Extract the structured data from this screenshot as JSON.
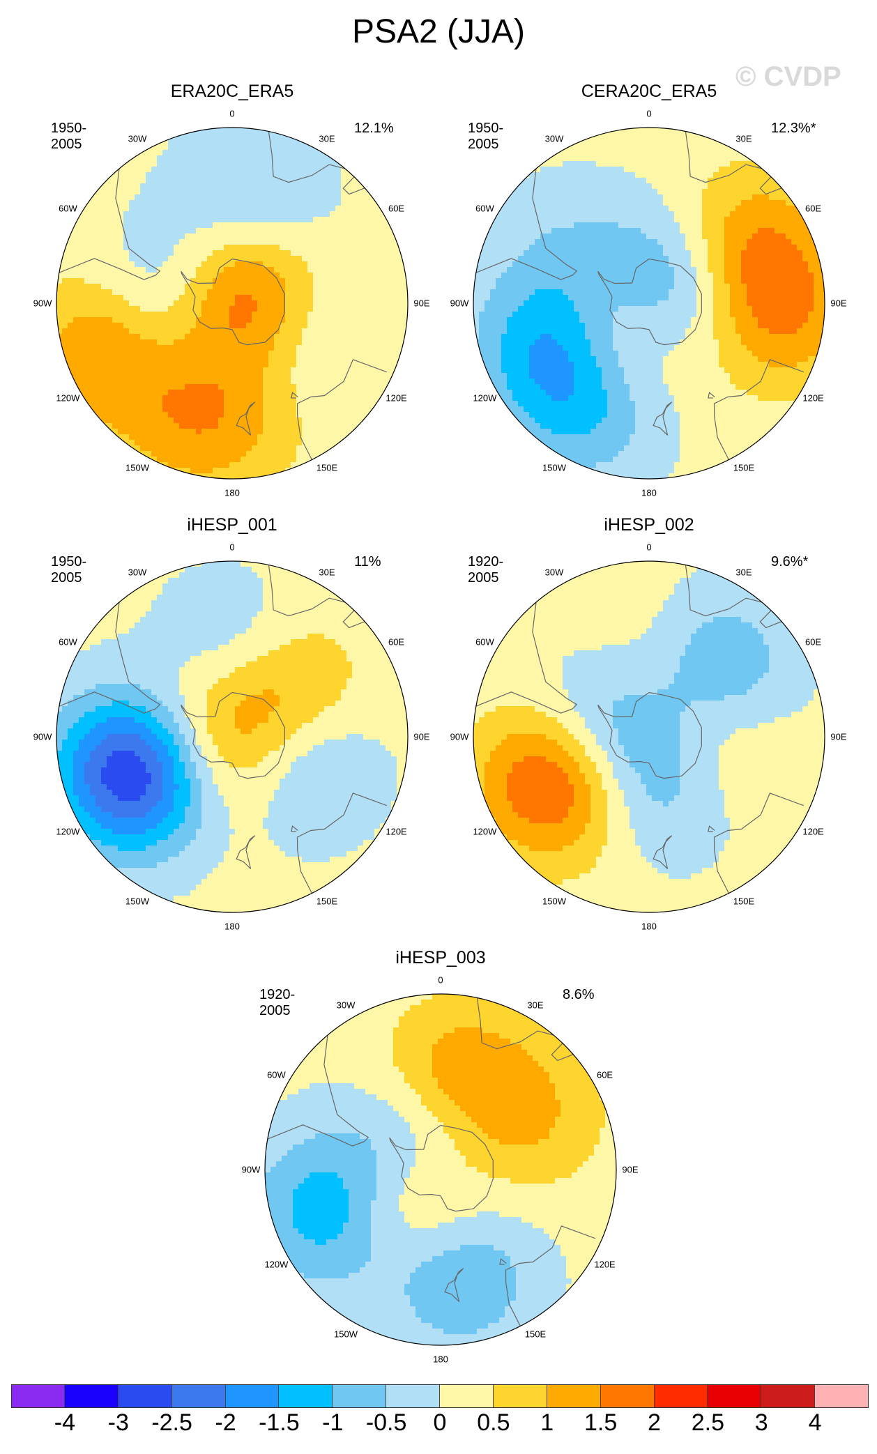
{
  "title": "PSA2 (JJA)",
  "watermark": "© CVDP",
  "panels": [
    {
      "name": "ERA20C_ERA5",
      "years": "1950-2005",
      "pct": "12.1%",
      "blobs": [
        {
          "lon": 170,
          "lat": -45,
          "amp": 0.7
        },
        {
          "lon": -90,
          "lat": -65,
          "amp": -1.5
        },
        {
          "lon": 10,
          "lat": -45,
          "amp": -0.8
        },
        {
          "lon": 130,
          "lat": -60,
          "amp": -0.8
        },
        {
          "lon": 60,
          "lat": -88,
          "amp": 2.5
        },
        {
          "lon": -110,
          "lat": -35,
          "amp": 1.5
        },
        {
          "lon": -160,
          "lat": -35,
          "amp": 0.9
        }
      ]
    },
    {
      "name": "CERA20C_ERA5",
      "years": "1950-2005",
      "pct": "12.3%*",
      "blobs": [
        {
          "lon": 60,
          "lat": -40,
          "amp": 1.2
        },
        {
          "lon": 95,
          "lat": -35,
          "amp": 1.3
        },
        {
          "lon": -115,
          "lat": -45,
          "amp": -1.7
        },
        {
          "lon": -150,
          "lat": -40,
          "amp": -1.1
        },
        {
          "lon": -135,
          "lat": -75,
          "amp": 2.2
        },
        {
          "lon": 60,
          "lat": -85,
          "amp": -2.2
        },
        {
          "lon": -60,
          "lat": -50,
          "amp": -0.6
        }
      ]
    },
    {
      "name": "iHESP_001",
      "years": "1950-2005",
      "pct": "11%",
      "blobs": [
        {
          "lon": -110,
          "lat": -45,
          "amp": -3.3
        },
        {
          "lon": 0,
          "lat": -55,
          "amp": -1.0
        },
        {
          "lon": 110,
          "lat": -60,
          "amp": -1.3
        },
        {
          "lon": 50,
          "lat": -60,
          "amp": 1.4
        },
        {
          "lon": -60,
          "lat": -75,
          "amp": 0.9
        },
        {
          "lon": 170,
          "lat": -80,
          "amp": 0.9
        }
      ]
    },
    {
      "name": "iHESP_002",
      "years": "1920-2005",
      "pct": "9.6%*",
      "blobs": [
        {
          "lon": -115,
          "lat": -45,
          "amp": 2.2
        },
        {
          "lon": 45,
          "lat": -50,
          "amp": -1.5
        },
        {
          "lon": 150,
          "lat": -70,
          "amp": -1.4
        },
        {
          "lon": -75,
          "lat": -70,
          "amp": -1.3
        },
        {
          "lon": 100,
          "lat": -65,
          "amp": 1.3
        },
        {
          "lon": 5,
          "lat": -60,
          "amp": 0.7
        }
      ]
    },
    {
      "name": "iHESP_003",
      "years": "1920-2005",
      "pct": "8.6%",
      "blobs": [
        {
          "lon": -55,
          "lat": -78,
          "amp": -2.0
        },
        {
          "lon": -130,
          "lat": -75,
          "amp": 2.2
        },
        {
          "lon": -110,
          "lat": -40,
          "amp": -1.6
        },
        {
          "lon": 170,
          "lat": -45,
          "amp": -1.3
        },
        {
          "lon": 10,
          "lat": -50,
          "amp": 1.3
        },
        {
          "lon": 60,
          "lat": -45,
          "amp": 0.8
        }
      ]
    }
  ],
  "lon_labels": [
    "0",
    "30E",
    "60E",
    "90E",
    "120E",
    "150E",
    "180",
    "150W",
    "120W",
    "90W",
    "60W",
    "30W"
  ],
  "colorbar": {
    "colors": [
      "#8B2BF1",
      "#1A00FF",
      "#2A4BEF",
      "#3C78EE",
      "#1F96FF",
      "#00C0FF",
      "#70C7F2",
      "#B1DFF5",
      "#FEF7A8",
      "#FED52E",
      "#FFAA00",
      "#FF7700",
      "#FF2C00",
      "#E80000",
      "#CD1C1C",
      "#FEB1B2"
    ],
    "ticks": [
      "-4",
      "-3",
      "-2.5",
      "-2",
      "-1.5",
      "-1",
      "-0.5",
      "0",
      "0.5",
      "1",
      "1.5",
      "2",
      "2.5",
      "3",
      "4"
    ],
    "levels": [
      -4,
      -3,
      -2.5,
      -2,
      -1.5,
      -1,
      -0.5,
      0,
      0.5,
      1,
      1.5,
      2,
      2.5,
      3,
      4
    ]
  }
}
